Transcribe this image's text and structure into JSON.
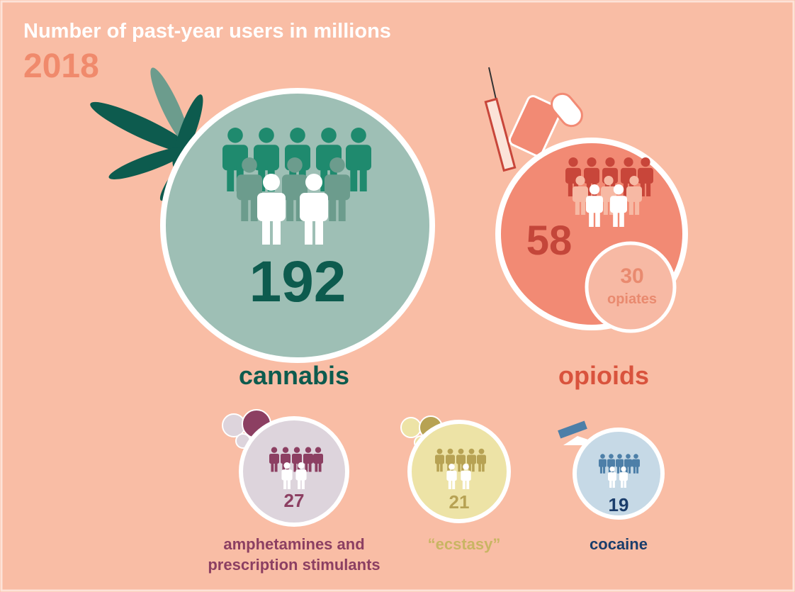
{
  "header": {
    "title": "Number of past-year users in millions",
    "year": "2018"
  },
  "drugs": [
    {
      "name": "cannabis",
      "value": "192"
    },
    {
      "name": "opioids",
      "value": "58",
      "sub": {
        "value": "30",
        "name": "opiates"
      }
    },
    {
      "name": "amphetamines and prescription stimulants",
      "value": "27"
    },
    {
      "name": "“ecstasy”",
      "value": "21"
    },
    {
      "name": "cocaine",
      "value": "19"
    }
  ]
}
